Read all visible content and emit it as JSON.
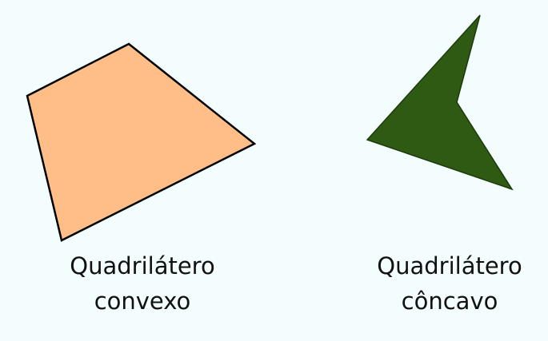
{
  "background_color": "#f3fdfd",
  "shapes": {
    "convex": {
      "fill": "#ffbd87",
      "stroke": "#000000",
      "label_line1": "Quadrilátero",
      "label_line2": "convexo"
    },
    "concave": {
      "fill": "#2e5a14",
      "stroke": "#1d3a0b",
      "label_line1": "Quadrilátero",
      "label_line2": "côncavo"
    }
  }
}
